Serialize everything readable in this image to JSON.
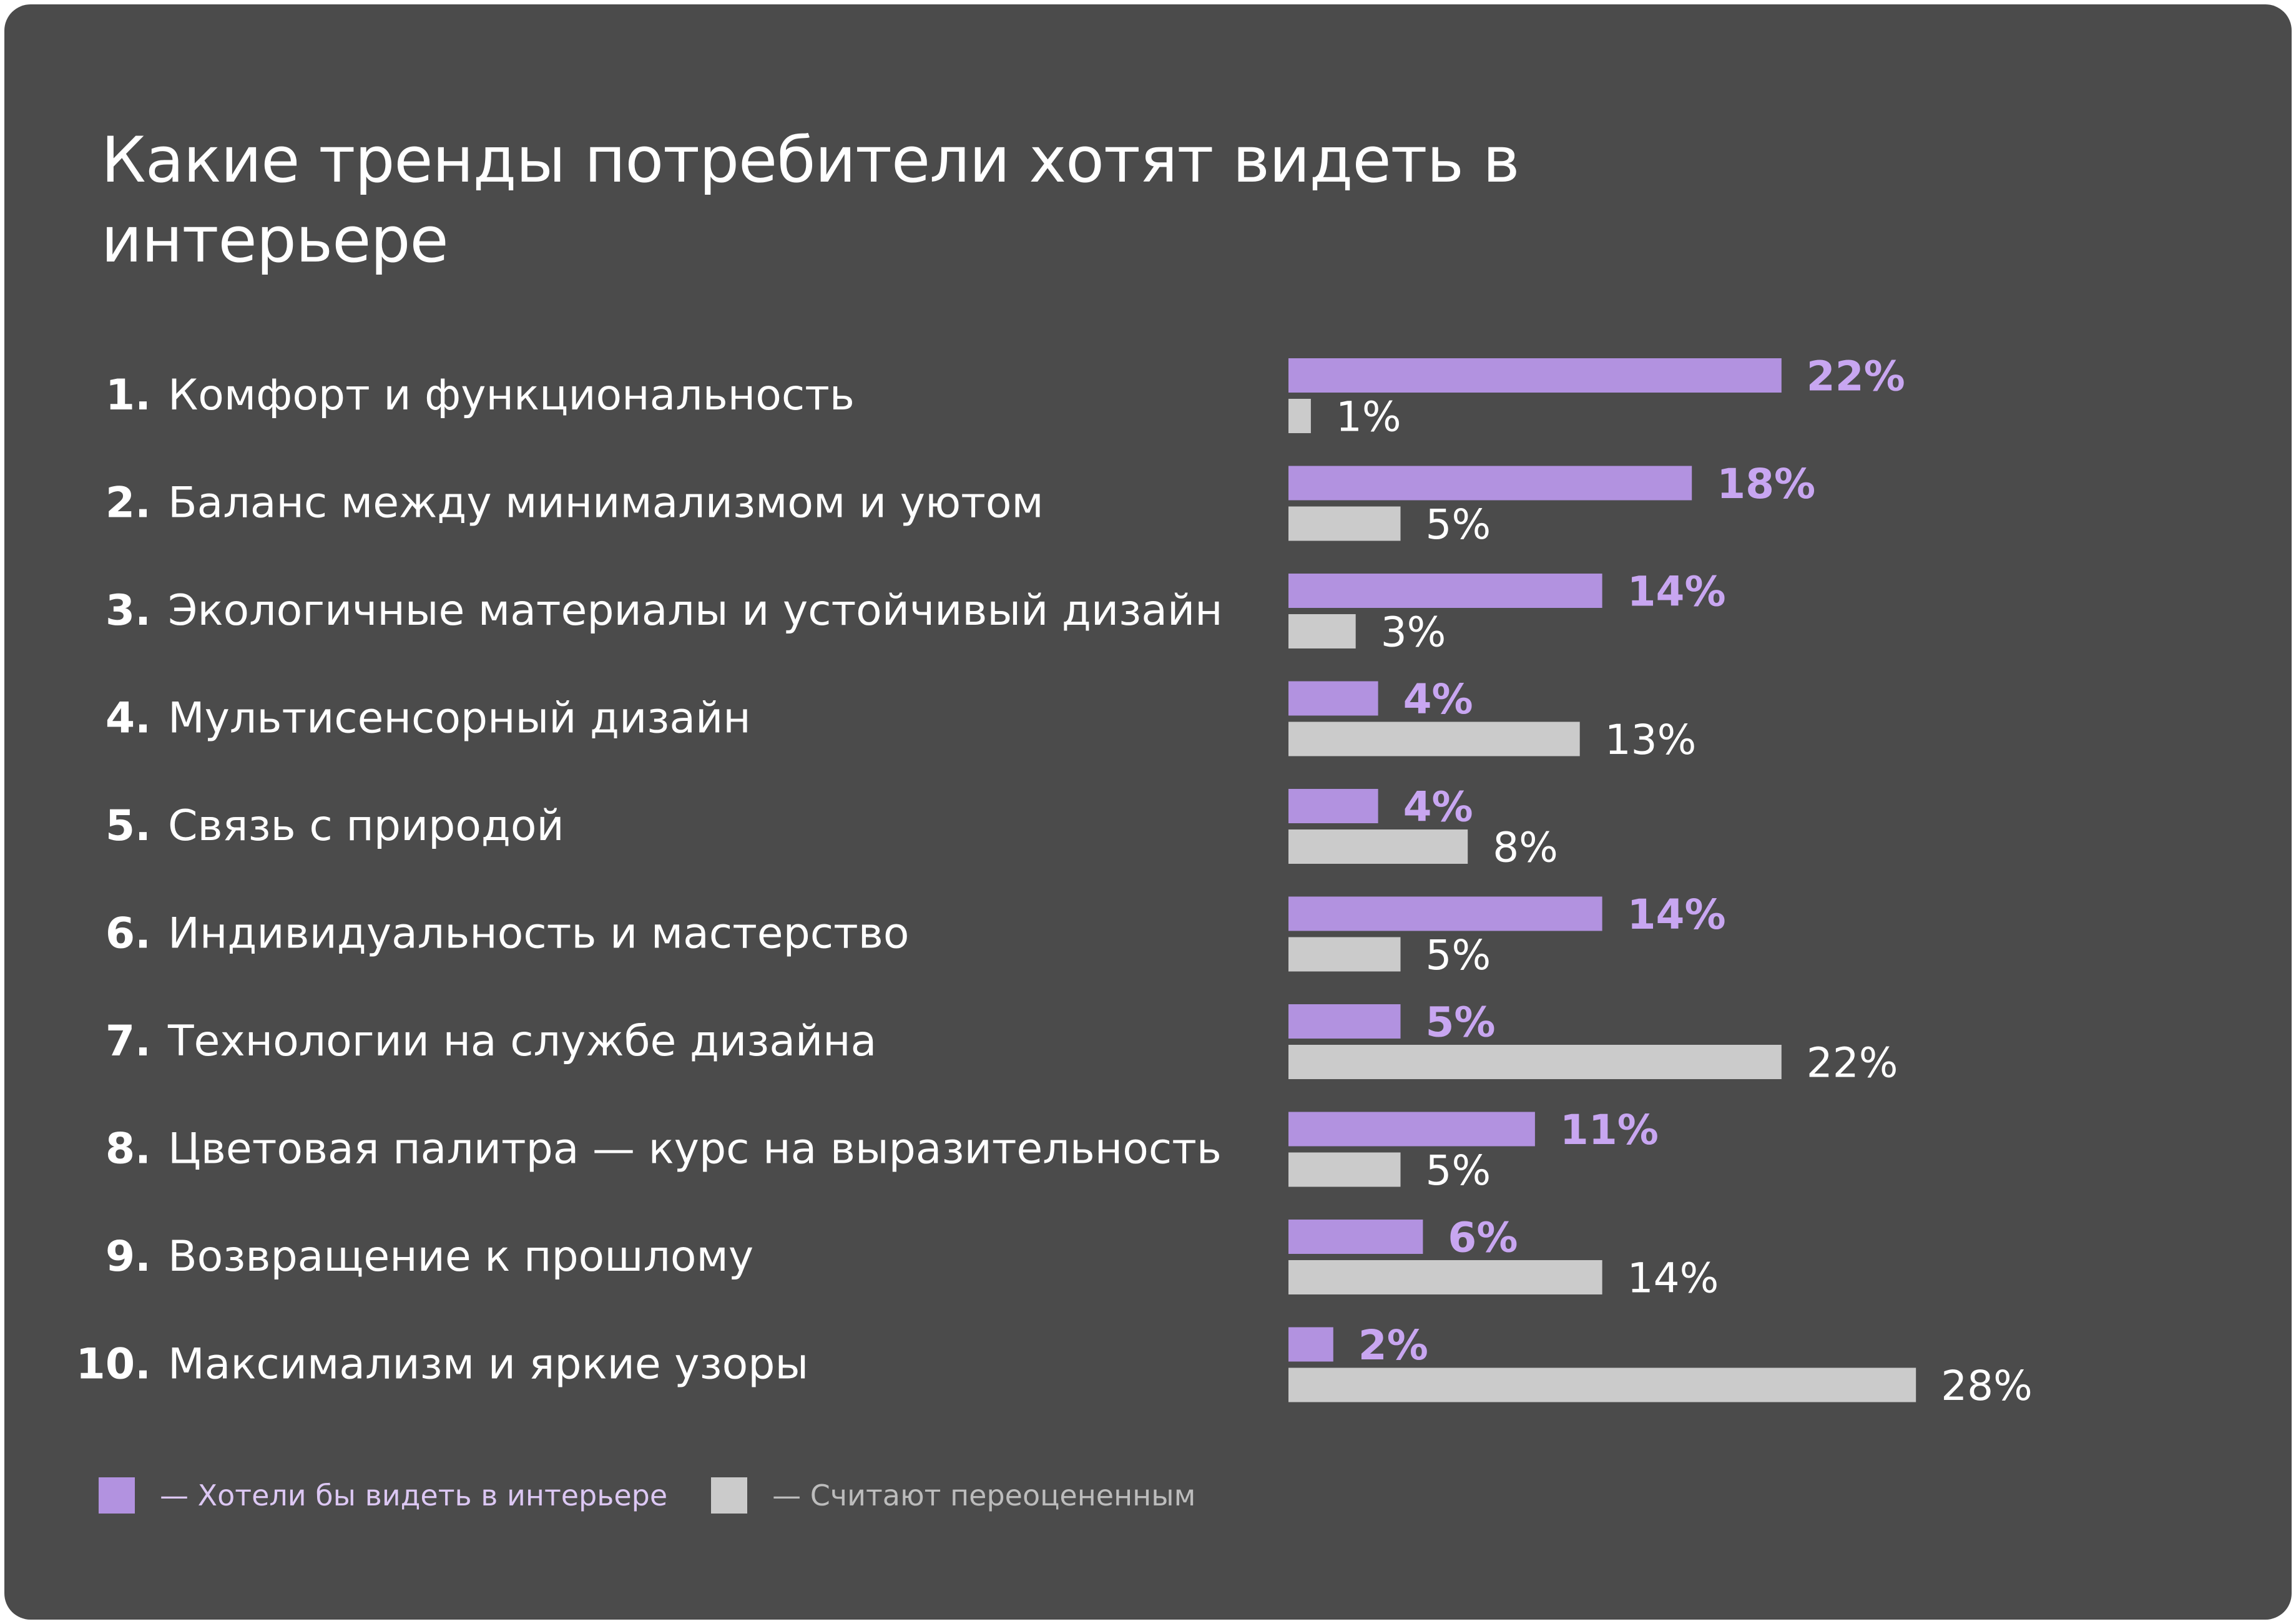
{
  "title": "Какие тренды потребители хотят видеть в интерьере",
  "colors": {
    "card_background": "#4b4b4b",
    "series_want": "#b292e0",
    "series_overrated": "#cbcbcb",
    "want_label": "#c8a6f1",
    "overrated_label": "#ffffff",
    "category_text": "#ffffff"
  },
  "legend": {
    "want": "— Хотели бы видеть в интерьере",
    "overrated": "— Считают переоцененным"
  },
  "chart_data": {
    "type": "bar",
    "orientation": "horizontal",
    "title": "Какие тренды потребители хотят видеть в интерьере",
    "numbers": [
      "1.",
      "2.",
      "3.",
      "4.",
      "5.",
      "6.",
      "7.",
      "8.",
      "9.",
      "10."
    ],
    "categories": [
      "Комфорт и функциональность",
      "Баланс между минимализмом и уютом",
      "Экологичные материалы и устойчивый дизайн",
      "Мультисенсорный дизайн",
      "Связь с природой",
      "Индивидуальность и мастерство",
      "Технологии на службе дизайна",
      "Цветовая палитра — курс на выразительность",
      "Возвращение к прошлому",
      "Максимализм и яркие узоры"
    ],
    "series": [
      {
        "name": "Хотели бы видеть в интерьере",
        "values": [
          22,
          18,
          14,
          4,
          4,
          14,
          5,
          11,
          6,
          2
        ],
        "labels": [
          "22%",
          "18%",
          "14%",
          "4%",
          "4%",
          "14%",
          "5%",
          "11%",
          "6%",
          "2%"
        ]
      },
      {
        "name": "Считают переоцененным",
        "values": [
          1,
          5,
          3,
          13,
          8,
          5,
          22,
          5,
          14,
          28
        ],
        "labels": [
          "1%",
          "5%",
          "3%",
          "13%",
          "8%",
          "5%",
          "22%",
          "5%",
          "14%",
          "28%"
        ]
      }
    ],
    "legend_position": "bottom-left",
    "grid": false
  }
}
